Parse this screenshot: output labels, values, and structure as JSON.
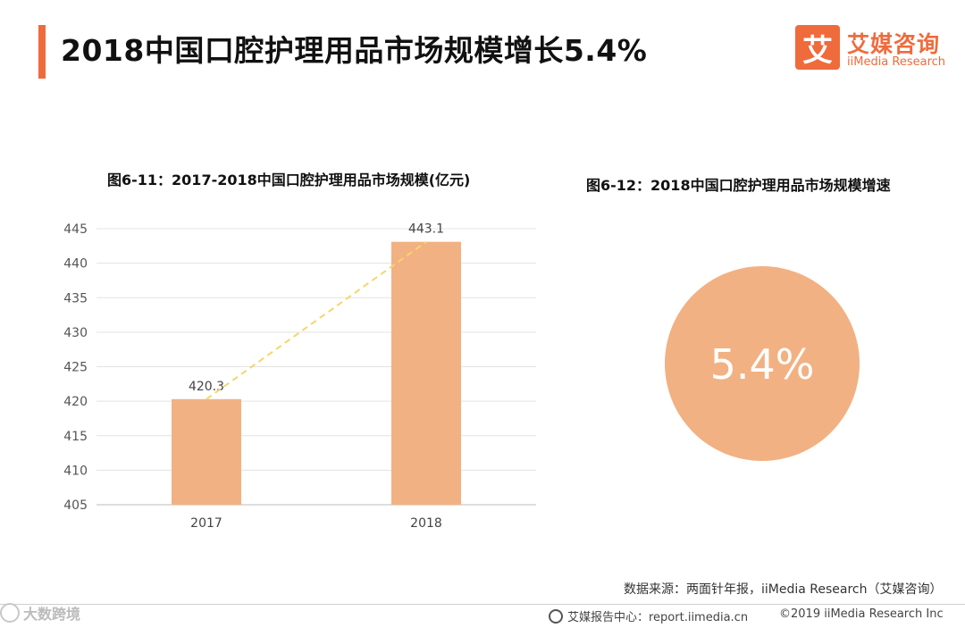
{
  "header": {
    "title": "2018中国口腔护理用品市场规模增长5.4%",
    "accent_color": "#ef6b3c"
  },
  "logo": {
    "mark": "艾",
    "name_cn": "艾媒咨询",
    "name_en": "iiMedia Research"
  },
  "chart_data": [
    {
      "type": "bar",
      "title": "图6-11：2017-2018中国口腔护理用品市场规模(亿元)",
      "categories": [
        "2017",
        "2018"
      ],
      "values": [
        420.3,
        443.1
      ],
      "value_labels": [
        "420.3",
        "443.1"
      ],
      "ylim": [
        405,
        445
      ],
      "yticks": [
        405,
        410,
        415,
        420,
        425,
        430,
        435,
        440,
        445
      ],
      "xlabel": "",
      "ylabel": "",
      "bar_color": "#f2b183",
      "trend_line": true,
      "trend_color": "#f7d56a",
      "grid": true
    },
    {
      "type": "pie",
      "title": "图6-12：2018中国口腔护理用品市场规模增速",
      "values": [
        5.4
      ],
      "center_label": "5.4%",
      "color": "#f2b183"
    }
  ],
  "footer": {
    "source": "数据来源：两面针年报，iiMedia Research（艾媒咨询）",
    "watermark": "大数跨境",
    "report_center": "艾媒报告中心：report.iimedia.cn",
    "copyright": "©2019  iiMedia Research  Inc"
  }
}
